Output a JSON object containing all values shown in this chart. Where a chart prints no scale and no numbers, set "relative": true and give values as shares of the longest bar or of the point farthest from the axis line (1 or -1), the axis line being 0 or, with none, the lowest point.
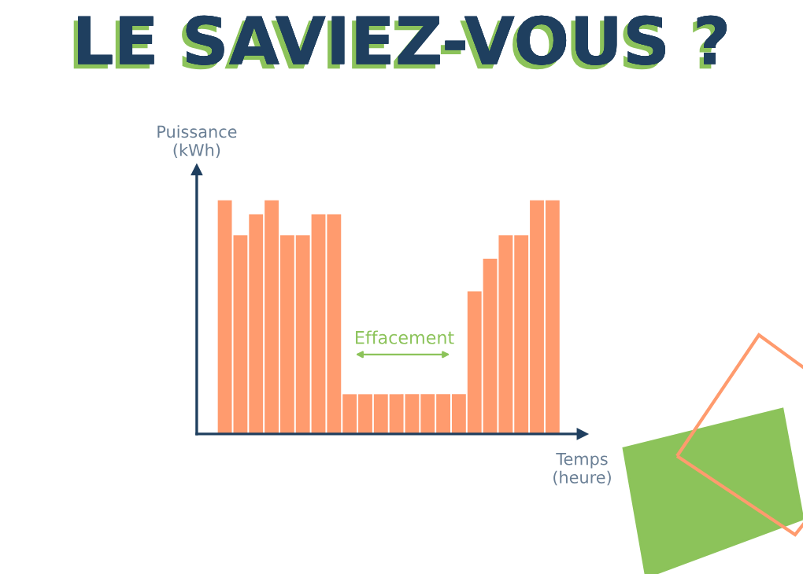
{
  "chart_data": {
    "type": "bar",
    "title": "LE SAVIEZ-VOUS ?",
    "xlabel": "Temps\n(heure)",
    "ylabel": "Puissance\n(kWh)",
    "relative": true,
    "annotations": [
      "Effacement"
    ],
    "categories": [
      null,
      null,
      null,
      null,
      null,
      null,
      null,
      null,
      null,
      null,
      null,
      null,
      null,
      null,
      null,
      null,
      null,
      null,
      null,
      null,
      null,
      null
    ],
    "values": [
      1,
      0.85,
      0.94,
      1,
      0.85,
      0.85,
      0.94,
      0.94,
      0.17,
      0.17,
      0.17,
      0.17,
      0.17,
      0.17,
      0.17,
      0.17,
      0.61,
      0.75,
      0.85,
      0.85,
      1,
      1
    ],
    "color": "#ff9b6e"
  }
}
